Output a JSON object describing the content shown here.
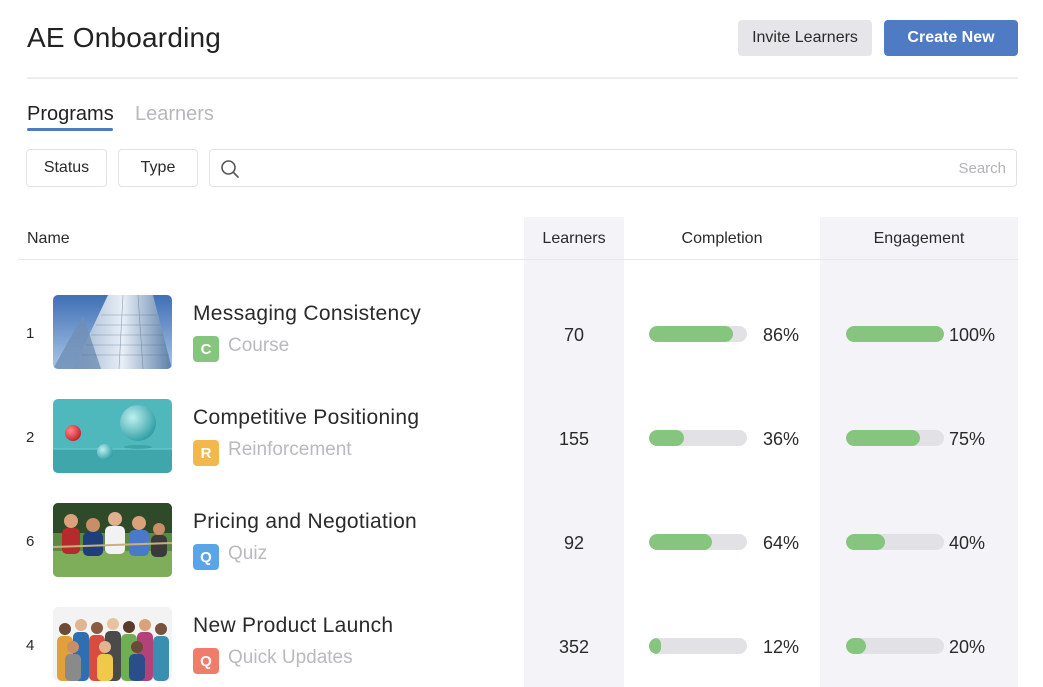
{
  "header": {
    "title": "AE Onboarding",
    "invite_label": "Invite Learners",
    "create_label": "Create New"
  },
  "tabs": [
    {
      "label": "Programs",
      "active": true
    },
    {
      "label": "Learners",
      "active": false
    }
  ],
  "filters": {
    "status_label": "Status",
    "type_label": "Type",
    "search_placeholder": "Search",
    "search_value": ""
  },
  "table": {
    "columns": {
      "name": "Name",
      "learners": "Learners",
      "completion": "Completion",
      "engagement": "Engagement"
    },
    "rows": [
      {
        "index": "1",
        "title": "Messaging Consistency",
        "type_letter": "C",
        "type_label": "Course",
        "type_color": "#86c57d",
        "thumbnail": "skyscraper-image",
        "learners": "70",
        "completion": 86,
        "completion_text": "86%",
        "engagement": 100,
        "engagement_text": "100%"
      },
      {
        "index": "2",
        "title": "Competitive Positioning",
        "type_letter": "R",
        "type_label": "Reinforcement",
        "type_color": "#f2b84b",
        "thumbnail": "balancing-spheres-image",
        "learners": "155",
        "completion": 36,
        "completion_text": "36%",
        "engagement": 75,
        "engagement_text": "75%"
      },
      {
        "index": "6",
        "title": "Pricing and Negotiation",
        "type_letter": "Q",
        "type_label": "Quiz",
        "type_color": "#5aa5e8",
        "thumbnail": "tug-of-war-image",
        "learners": "92",
        "completion": 64,
        "completion_text": "64%",
        "engagement": 40,
        "engagement_text": "40%"
      },
      {
        "index": "4",
        "title": "New Product Launch",
        "type_letter": "Q",
        "type_label": "Quick Updates",
        "type_color": "#f07d6c",
        "thumbnail": "group-photo-image",
        "learners": "352",
        "completion": 12,
        "completion_text": "12%",
        "engagement": 20,
        "engagement_text": "20%"
      }
    ]
  }
}
